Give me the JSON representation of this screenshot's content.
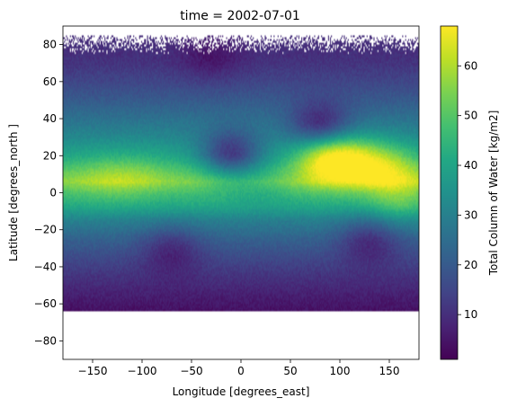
{
  "chart_data": {
    "type": "heatmap",
    "title": "time = 2002-07-01",
    "xlabel": "Longitude [degrees_east]",
    "ylabel": "Latitude [degrees_north ]",
    "xlim": [
      -180,
      180
    ],
    "ylim": [
      -90,
      90
    ],
    "xticks": [
      -150,
      -100,
      -50,
      0,
      50,
      100,
      150
    ],
    "yticks": [
      -80,
      -60,
      -40,
      -20,
      0,
      20,
      40,
      60,
      80
    ],
    "colorbar": {
      "label": "Total Column of Water [kg/m2]",
      "colormap": "viridis",
      "min": 1,
      "max": 68,
      "ticks": [
        10,
        20,
        30,
        40,
        50,
        60
      ]
    },
    "missing_data_color": "#ffffff",
    "data_coverage": {
      "lat_min": -64,
      "lat_max": 85
    },
    "zonal_profile": [
      {
        "lat": -64,
        "value": 4
      },
      {
        "lat": -55,
        "value": 7
      },
      {
        "lat": -45,
        "value": 11
      },
      {
        "lat": -35,
        "value": 16
      },
      {
        "lat": -25,
        "value": 22
      },
      {
        "lat": -15,
        "value": 30
      },
      {
        "lat": -8,
        "value": 40
      },
      {
        "lat": 0,
        "value": 48
      },
      {
        "lat": 6,
        "value": 56
      },
      {
        "lat": 12,
        "value": 50
      },
      {
        "lat": 20,
        "value": 40
      },
      {
        "lat": 30,
        "value": 32
      },
      {
        "lat": 40,
        "value": 26
      },
      {
        "lat": 50,
        "value": 20
      },
      {
        "lat": 60,
        "value": 15
      },
      {
        "lat": 70,
        "value": 11
      },
      {
        "lat": 85,
        "value": 8
      }
    ],
    "features": [
      {
        "lon": -140,
        "lat": 8,
        "value": 58
      },
      {
        "lon": -110,
        "lat": 10,
        "value": 57
      },
      {
        "lon": -70,
        "lat": 10,
        "value": 52
      },
      {
        "lon": 115,
        "lat": 18,
        "value": 62
      },
      {
        "lon": 150,
        "lat": 15,
        "value": 60
      },
      {
        "lon": 85,
        "lat": 20,
        "value": 64
      },
      {
        "lon": 20,
        "lat": 5,
        "value": 50
      },
      {
        "lon": 160,
        "lat": -5,
        "value": 52
      },
      {
        "lon": 80,
        "lat": 35,
        "value": 8
      },
      {
        "lon": -30,
        "lat": 72,
        "value": 5
      },
      {
        "lon": -10,
        "lat": 20,
        "value": 14
      },
      {
        "lon": 130,
        "lat": -25,
        "value": 10
      },
      {
        "lon": -70,
        "lat": -30,
        "value": 9
      }
    ]
  },
  "colors": {
    "axis": "#000000",
    "background": "#ffffff"
  }
}
